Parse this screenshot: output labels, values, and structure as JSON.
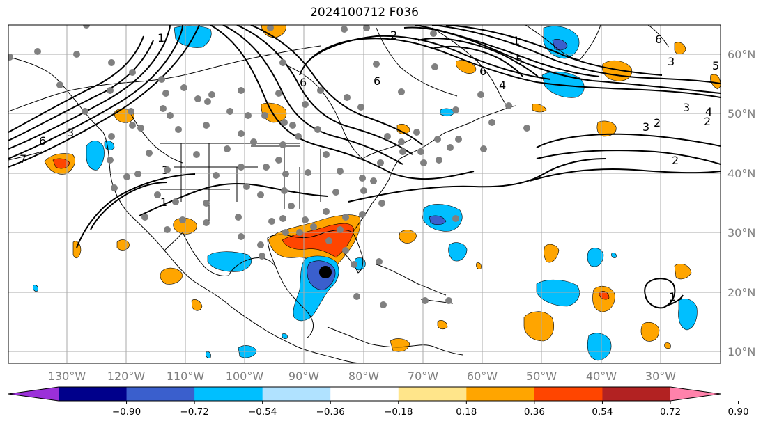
{
  "title": "2024100712 F036",
  "lon_labels": [
    "130°W",
    "120°W",
    "110°W",
    "100°W",
    "90°W",
    "80°W",
    "70°W",
    "60°W",
    "50°W",
    "40°W",
    "30°W"
  ],
  "lat_labels": [
    "60°N",
    "50°N",
    "40°N",
    "30°N",
    "20°N",
    "10°N"
  ],
  "colorbar": {
    "ticks": [
      "−0.90",
      "−0.72",
      "−0.54",
      "−0.36",
      "−0.18",
      "0.18",
      "0.36",
      "0.54",
      "0.72",
      "0.90"
    ],
    "colors": [
      "#9b30d9",
      "#00008b",
      "#3a5fcd",
      "#00bfff",
      "#b0e2ff",
      "#ffffff",
      "#ffe58a",
      "#ffa500",
      "#ff4500",
      "#b22222",
      "#ff82ab"
    ]
  },
  "contour_labels": [
    "1",
    "2",
    "3",
    "4",
    "5",
    "6",
    "1",
    "2",
    "3",
    "4",
    "6",
    "7",
    "1",
    "2",
    "2",
    "3",
    "2",
    "3",
    "4",
    "5",
    "6",
    "1",
    "2",
    "3",
    "1"
  ],
  "colors": {
    "grid": "#aaaaaa",
    "axis_label": "#7f7f7f",
    "station_dot": "#808080",
    "contour": "#000000"
  }
}
